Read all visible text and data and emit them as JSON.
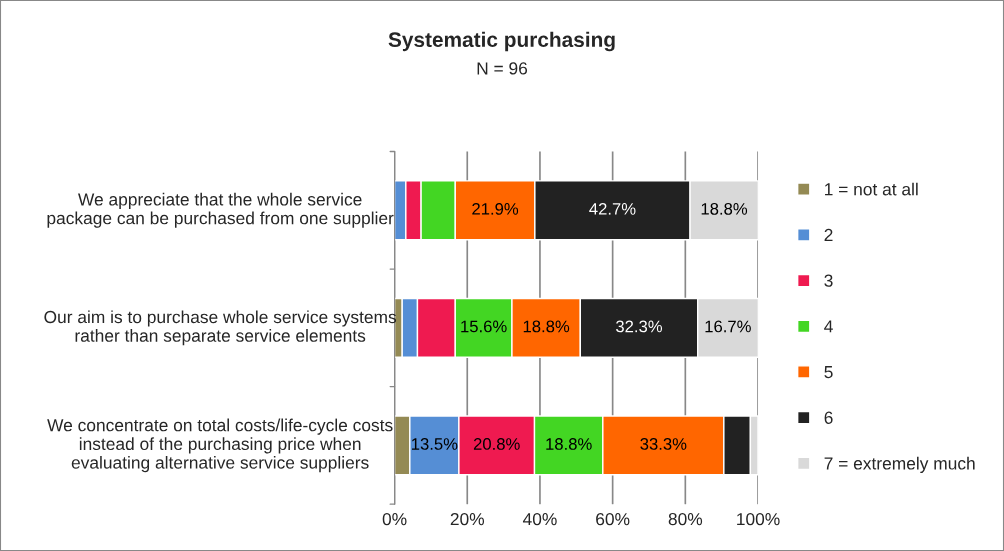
{
  "chart_data": {
    "type": "bar",
    "orientation": "horizontal",
    "stacked": true,
    "title": "Systematic purchasing",
    "subtitle": "N = 96",
    "categories": [
      "We appreciate that the whole service package can be purchased from one supplier",
      "Our aim is to purchase whole service systems rather than separate service elements",
      "We concentrate on total costs/life-cycle costs instead of the purchasing price when evaluating alternative service suppliers"
    ],
    "series": [
      {
        "name": "1 = not at all",
        "color": "#948a54",
        "values": [
          0,
          2.1,
          4.2
        ],
        "value_labels": [
          null,
          null,
          null
        ]
      },
      {
        "name": "2",
        "color": "#558ed5",
        "values": [
          3.1,
          4.2,
          13.5
        ],
        "value_labels": [
          null,
          null,
          "13.5%"
        ]
      },
      {
        "name": "3",
        "color": "#ef1a50",
        "values": [
          4.2,
          10.4,
          20.8
        ],
        "value_labels": [
          null,
          null,
          "20.8%"
        ]
      },
      {
        "name": "4",
        "color": "#43d623",
        "values": [
          9.4,
          15.6,
          18.8
        ],
        "value_labels": [
          null,
          "15.6%",
          "18.8%"
        ]
      },
      {
        "name": "5",
        "color": "#ff6600",
        "values": [
          21.9,
          18.8,
          33.3
        ],
        "value_labels": [
          "21.9%",
          "18.8%",
          "33.3%"
        ]
      },
      {
        "name": "6",
        "color": "#222222",
        "values": [
          42.7,
          32.3,
          7.3
        ],
        "value_labels": [
          "42.7%",
          "32.3%",
          null
        ]
      },
      {
        "name": "7 = extremely much",
        "color": "#d9d9d9",
        "values": [
          18.8,
          16.7,
          2.1
        ],
        "value_labels": [
          "18.8%",
          "16.7%",
          null
        ]
      }
    ],
    "xlim": [
      0,
      100
    ],
    "xticks": [
      {
        "value": 0,
        "label": "0%"
      },
      {
        "value": 20,
        "label": "20%"
      },
      {
        "value": 40,
        "label": "40%"
      },
      {
        "value": 60,
        "label": "60%"
      },
      {
        "value": 80,
        "label": "80%"
      },
      {
        "value": 100,
        "label": "100%"
      }
    ],
    "grid": "x",
    "legend": "right"
  }
}
